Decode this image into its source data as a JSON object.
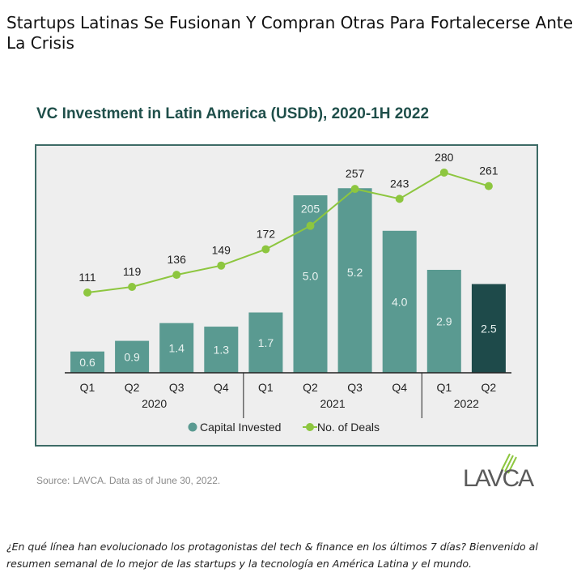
{
  "article": {
    "headline": "Startups Latinas Se Fusionan Y Compran Otras Para Fortalecerse Ante La Crisis",
    "intro": "¿En qué línea han evolucionado los protagonistas del tech & finance en los últimos 7 días? Bienvenido al resumen semanal de lo mejor de las startups y la tecnología en América Latina y el mundo."
  },
  "chart_data": {
    "type": "bar+line",
    "title": "VC Investment in Latin America (USDb), 2020-1H 2022",
    "categories": [
      "Q1",
      "Q2",
      "Q3",
      "Q4",
      "Q1",
      "Q2",
      "Q3",
      "Q4",
      "Q1",
      "Q2"
    ],
    "groups": [
      {
        "label": "2020",
        "count": 4
      },
      {
        "label": "2021",
        "count": 4
      },
      {
        "label": "2022",
        "count": 2
      }
    ],
    "series": [
      {
        "name": "Capital Invested",
        "type": "bar",
        "values": [
          0.6,
          0.9,
          1.4,
          1.3,
          1.7,
          5.0,
          5.2,
          4.0,
          2.9,
          2.5
        ],
        "labels": [
          "0.6",
          "0.9",
          "1.4",
          "1.3",
          "1.7",
          "5.0",
          "5.2",
          "4.0",
          "2.9",
          "2.5"
        ],
        "color": "#5a9a91",
        "highlight_color": "#1e4a4a"
      },
      {
        "name": "No. of Deals",
        "type": "line",
        "values": [
          111,
          119,
          136,
          149,
          172,
          205,
          257,
          243,
          280,
          261
        ],
        "color": "#8dc63f"
      }
    ],
    "grid": false,
    "legend_placement": "bottom",
    "background": "#eeeeee",
    "source": "Source: LAVCA. Data as of June 30, 2022."
  },
  "logo": {
    "text": "LAVCA"
  }
}
